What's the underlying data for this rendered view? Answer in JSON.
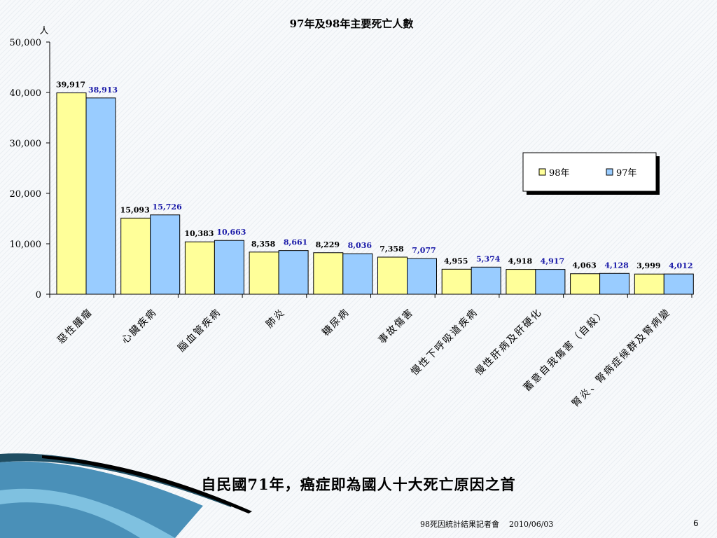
{
  "chart_data": {
    "type": "bar",
    "title": "97年及98年主要死亡人數",
    "ylabel": "人",
    "ylim": [
      0,
      50000
    ],
    "yticks": [
      0,
      10000,
      20000,
      30000,
      40000,
      50000
    ],
    "ytick_labels": [
      "0",
      "10,000",
      "20,000",
      "30,000",
      "40,000",
      "50,000"
    ],
    "categories": [
      "惡性腫瘤",
      "心臟疾病",
      "腦血管疾病",
      "肺炎",
      "糖尿病",
      "事故傷害",
      "慢性下呼吸道疾病",
      "慢性肝病及肝硬化",
      "蓄意自我傷害（自殺）",
      "腎炎、腎病症候群及腎病變"
    ],
    "series": [
      {
        "name": "98年",
        "color": "#ffff99",
        "values": [
          39917,
          15093,
          10383,
          8358,
          8229,
          7358,
          4955,
          4918,
          4063,
          3999
        ],
        "labels": [
          "39,917",
          "15,093",
          "10,383",
          "8,358",
          "8,229",
          "7,358",
          "4,955",
          "4,918",
          "4,063",
          "3,999"
        ]
      },
      {
        "name": "97年",
        "color": "#99ccff",
        "values": [
          38913,
          15726,
          10663,
          8661,
          8036,
          7077,
          5374,
          4917,
          4128,
          4012
        ],
        "labels": [
          "38,913",
          "15,726",
          "10,663",
          "8,661",
          "8,036",
          "7,077",
          "5,374",
          "4,917",
          "4,128",
          "4,012"
        ]
      }
    ],
    "grid": false,
    "legend_position": "right"
  },
  "caption": "自民國71年，癌症即為國人十大死亡原因之首",
  "footer": {
    "text": "98死因統計結果記者會",
    "date": "2010/06/03",
    "page": "6"
  },
  "colors": {
    "bar_98": "#ffff99",
    "bar_97": "#99ccff",
    "label_97": "#1a1aa8"
  }
}
